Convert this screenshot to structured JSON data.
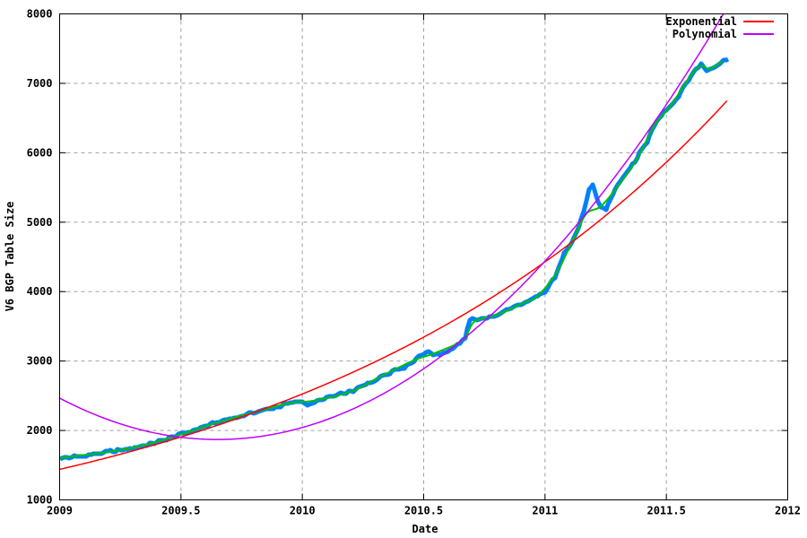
{
  "chart_data": {
    "type": "line",
    "title": "",
    "xlabel": "Date",
    "ylabel": "V6 BGP Table Size",
    "xlim": [
      2009,
      2012
    ],
    "ylim": [
      1000,
      8000
    ],
    "grid": "dashed-gray-major",
    "legend_position": "top-right-inside",
    "x_ticks": [
      {
        "v": 2009,
        "label": "2009"
      },
      {
        "v": 2009.5,
        "label": "2009.5"
      },
      {
        "v": 2010,
        "label": "2010"
      },
      {
        "v": 2010.5,
        "label": "2010.5"
      },
      {
        "v": 2011,
        "label": "2011"
      },
      {
        "v": 2011.5,
        "label": "2011.5"
      },
      {
        "v": 2012,
        "label": "2012"
      }
    ],
    "y_ticks": [
      {
        "v": 1000,
        "label": "1000"
      },
      {
        "v": 2000,
        "label": "2000"
      },
      {
        "v": 3000,
        "label": "3000"
      },
      {
        "v": 4000,
        "label": "4000"
      },
      {
        "v": 5000,
        "label": "5000"
      },
      {
        "v": 6000,
        "label": "6000"
      },
      {
        "v": 7000,
        "label": "7000"
      },
      {
        "v": 8000,
        "label": "8000"
      }
    ],
    "series": [
      {
        "name": "v6-bgp-table-size-data",
        "kind": "points",
        "color": "#0080ff",
        "width": 5,
        "noisy": true,
        "in_legend": false,
        "points": [
          [
            2009.0,
            1600
          ],
          [
            2009.05,
            1615
          ],
          [
            2009.1,
            1635
          ],
          [
            2009.15,
            1660
          ],
          [
            2009.2,
            1690
          ],
          [
            2009.25,
            1715
          ],
          [
            2009.3,
            1745
          ],
          [
            2009.35,
            1785
          ],
          [
            2009.4,
            1830
          ],
          [
            2009.45,
            1885
          ],
          [
            2009.5,
            1945
          ],
          [
            2009.55,
            2000
          ],
          [
            2009.6,
            2060
          ],
          [
            2009.65,
            2120
          ],
          [
            2009.7,
            2165
          ],
          [
            2009.75,
            2210
          ],
          [
            2009.81,
            2270
          ],
          [
            2009.86,
            2305
          ],
          [
            2009.92,
            2365
          ],
          [
            2009.97,
            2405
          ],
          [
            2010.0,
            2420
          ],
          [
            2010.03,
            2365
          ],
          [
            2010.09,
            2455
          ],
          [
            2010.15,
            2510
          ],
          [
            2010.2,
            2560
          ],
          [
            2010.26,
            2650
          ],
          [
            2010.31,
            2750
          ],
          [
            2010.37,
            2860
          ],
          [
            2010.42,
            2915
          ],
          [
            2010.46,
            3005
          ],
          [
            2010.49,
            3105
          ],
          [
            2010.52,
            3125
          ],
          [
            2010.56,
            3085
          ],
          [
            2010.6,
            3150
          ],
          [
            2010.64,
            3240
          ],
          [
            2010.67,
            3315
          ],
          [
            2010.69,
            3590
          ],
          [
            2010.73,
            3610
          ],
          [
            2010.77,
            3620
          ],
          [
            2010.82,
            3700
          ],
          [
            2010.88,
            3790
          ],
          [
            2010.93,
            3845
          ],
          [
            2010.97,
            3930
          ],
          [
            2011.0,
            3995
          ],
          [
            2011.04,
            4200
          ],
          [
            2011.08,
            4540
          ],
          [
            2011.11,
            4730
          ],
          [
            2011.14,
            4950
          ],
          [
            2011.16,
            5150
          ],
          [
            2011.18,
            5470
          ],
          [
            2011.195,
            5540
          ],
          [
            2011.21,
            5350
          ],
          [
            2011.23,
            5200
          ],
          [
            2011.25,
            5180
          ],
          [
            2011.27,
            5330
          ],
          [
            2011.3,
            5540
          ],
          [
            2011.34,
            5730
          ],
          [
            2011.38,
            5930
          ],
          [
            2011.42,
            6150
          ],
          [
            2011.45,
            6400
          ],
          [
            2011.49,
            6600
          ],
          [
            2011.53,
            6720
          ],
          [
            2011.56,
            6880
          ],
          [
            2011.59,
            7040
          ],
          [
            2011.62,
            7200
          ],
          [
            2011.645,
            7280
          ],
          [
            2011.665,
            7190
          ],
          [
            2011.69,
            7230
          ],
          [
            2011.72,
            7300
          ],
          [
            2011.755,
            7350
          ]
        ]
      },
      {
        "name": "smoothed-data",
        "kind": "smooth",
        "color": "#00c000",
        "width": 2,
        "noisy": false,
        "in_legend": false,
        "points": [
          [
            2009.0,
            1605
          ],
          [
            2009.2,
            1690
          ],
          [
            2009.35,
            1790
          ],
          [
            2009.5,
            1945
          ],
          [
            2009.65,
            2115
          ],
          [
            2009.8,
            2260
          ],
          [
            2009.95,
            2395
          ],
          [
            2010.05,
            2430
          ],
          [
            2010.2,
            2560
          ],
          [
            2010.33,
            2790
          ],
          [
            2010.46,
            3010
          ],
          [
            2010.55,
            3120
          ],
          [
            2010.66,
            3300
          ],
          [
            2010.71,
            3570
          ],
          [
            2010.8,
            3660
          ],
          [
            2010.9,
            3820
          ],
          [
            2010.97,
            3940
          ],
          [
            2011.05,
            4290
          ],
          [
            2011.12,
            4780
          ],
          [
            2011.17,
            5120
          ],
          [
            2011.23,
            5230
          ],
          [
            2011.3,
            5520
          ],
          [
            2011.38,
            5920
          ],
          [
            2011.45,
            6390
          ],
          [
            2011.52,
            6690
          ],
          [
            2011.6,
            7110
          ],
          [
            2011.64,
            7250
          ],
          [
            2011.68,
            7210
          ],
          [
            2011.73,
            7320
          ]
        ]
      },
      {
        "name": "Exponential",
        "kind": "model-exp",
        "color": "#ff0000",
        "width": 1.5,
        "noisy": false,
        "in_legend": true,
        "model": {
          "a": 1440,
          "k": 0.5617,
          "t0": 2009
        },
        "t_range": [
          2009,
          2011.755
        ]
      },
      {
        "name": "Polynomial",
        "kind": "model-poly2",
        "color": "#c000ff",
        "width": 1.5,
        "noisy": false,
        "in_legend": true,
        "model": {
          "c": 1870,
          "a": 1410,
          "t0": 2009.65
        },
        "t_range": [
          2009,
          2011.755
        ]
      }
    ],
    "legend": {
      "items": [
        {
          "label": "Exponential",
          "color": "#ff0000"
        },
        {
          "label": "Polynomial",
          "color": "#c000ff"
        }
      ]
    }
  },
  "style": {
    "grid_color": "#a0a0a0",
    "border_color": "#000000",
    "text_color": "#000000",
    "background": "#ffffff"
  }
}
